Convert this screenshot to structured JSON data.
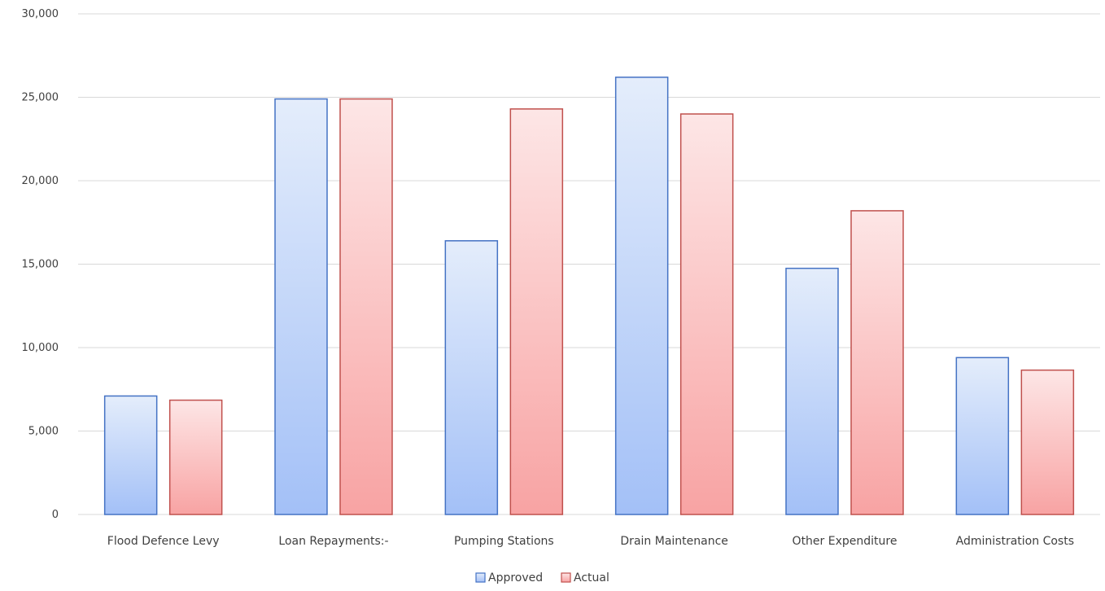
{
  "chart_data": {
    "type": "bar",
    "categories": [
      "Flood Defence Levy",
      "Loan Repayments:-",
      "Pumping Stations",
      "Drain Maintenance",
      "Other Expenditure",
      "Administration Costs"
    ],
    "series": [
      {
        "name": "Approved",
        "values": [
          7100,
          24900,
          16400,
          26200,
          14750,
          9400
        ],
        "color": "#4472C4",
        "fill_top": "#e4edfb",
        "fill_bottom": "#a3c0f7"
      },
      {
        "name": "Actual",
        "values": [
          6850,
          24900,
          24300,
          24000,
          18200,
          8650
        ],
        "color": "#C0504D",
        "fill_top": "#fde6e6",
        "fill_bottom": "#f8a3a3"
      }
    ],
    "ylim": [
      0,
      30000
    ],
    "y_ticks": [
      0,
      5000,
      10000,
      15000,
      20000,
      25000,
      30000
    ],
    "y_tick_labels": [
      "0",
      "5,000",
      "10,000",
      "15,000",
      "20,000",
      "25,000",
      "30,000"
    ],
    "grid": true,
    "gridline_color": "#d9d9d9",
    "legend_position": "bottom",
    "xlabel": "",
    "ylabel": "",
    "title": ""
  }
}
